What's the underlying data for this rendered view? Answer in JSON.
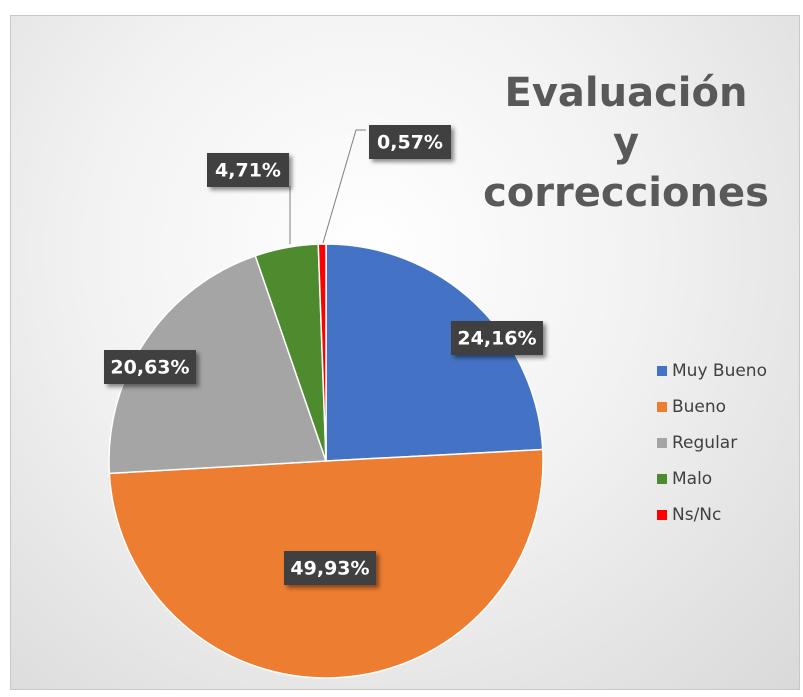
{
  "chart_data": {
    "type": "pie",
    "title": "Evaluación y correcciones",
    "categories": [
      "Muy Bueno",
      "Bueno",
      "Regular",
      "Malo",
      "Ns/Nc"
    ],
    "values": [
      24.16,
      49.93,
      20.63,
      4.71,
      0.57
    ],
    "value_labels": [
      "24,16%",
      "49,93%",
      "20,63%",
      "4,71%",
      "0,57%"
    ],
    "colors": [
      "#4472c4",
      "#ed7d31",
      "#a5a5a5",
      "#4e8a2e",
      "#ff0000"
    ],
    "legend": "right"
  }
}
